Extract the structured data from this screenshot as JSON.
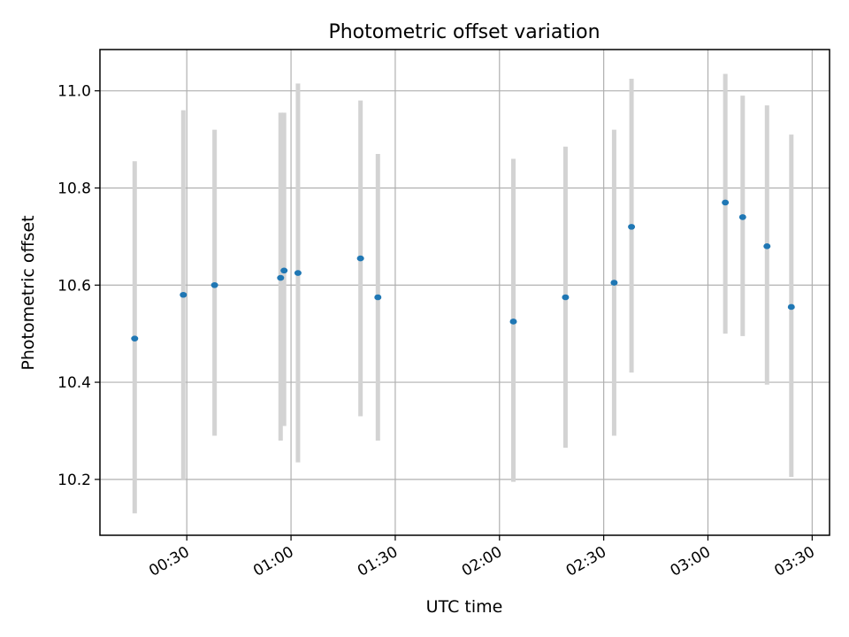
{
  "chart_data": {
    "type": "scatter",
    "title": "Photometric offset variation",
    "xlabel": "UTC time",
    "ylabel": "Photometric offset",
    "x_axis": {
      "kind": "time",
      "range": [
        "00:05",
        "03:35"
      ],
      "ticks": [
        "00:30",
        "01:00",
        "01:30",
        "02:00",
        "02:30",
        "03:00",
        "03:30"
      ]
    },
    "y_axis": {
      "range": [
        10.085,
        11.085
      ],
      "ticks": [
        "10.2",
        "10.4",
        "10.6",
        "10.8",
        "11.0"
      ]
    },
    "grid": true,
    "colors": {
      "point": "#1f77b4",
      "errorbar": "#d3d3d3"
    },
    "series": [
      {
        "points": [
          {
            "x": "00:15",
            "y": 10.49,
            "lower": 10.13,
            "upper": 10.855
          },
          {
            "x": "00:29",
            "y": 10.58,
            "lower": 10.2,
            "upper": 10.96
          },
          {
            "x": "00:38",
            "y": 10.6,
            "lower": 10.29,
            "upper": 10.92
          },
          {
            "x": "00:57",
            "y": 10.615,
            "lower": 10.28,
            "upper": 10.955
          },
          {
            "x": "00:58",
            "y": 10.63,
            "lower": 10.31,
            "upper": 10.955
          },
          {
            "x": "01:02",
            "y": 10.625,
            "lower": 10.235,
            "upper": 11.015
          },
          {
            "x": "01:20",
            "y": 10.655,
            "lower": 10.33,
            "upper": 10.98
          },
          {
            "x": "01:25",
            "y": 10.575,
            "lower": 10.28,
            "upper": 10.87
          },
          {
            "x": "02:04",
            "y": 10.525,
            "lower": 10.195,
            "upper": 10.86
          },
          {
            "x": "02:19",
            "y": 10.575,
            "lower": 10.265,
            "upper": 10.885
          },
          {
            "x": "02:33",
            "y": 10.605,
            "lower": 10.29,
            "upper": 10.92
          },
          {
            "x": "02:38",
            "y": 10.72,
            "lower": 10.42,
            "upper": 11.025
          },
          {
            "x": "03:05",
            "y": 10.77,
            "lower": 10.5,
            "upper": 11.035
          },
          {
            "x": "03:10",
            "y": 10.74,
            "lower": 10.495,
            "upper": 10.99
          },
          {
            "x": "03:17",
            "y": 10.68,
            "lower": 10.395,
            "upper": 10.97
          },
          {
            "x": "03:24",
            "y": 10.555,
            "lower": 10.205,
            "upper": 10.91
          }
        ]
      }
    ]
  }
}
